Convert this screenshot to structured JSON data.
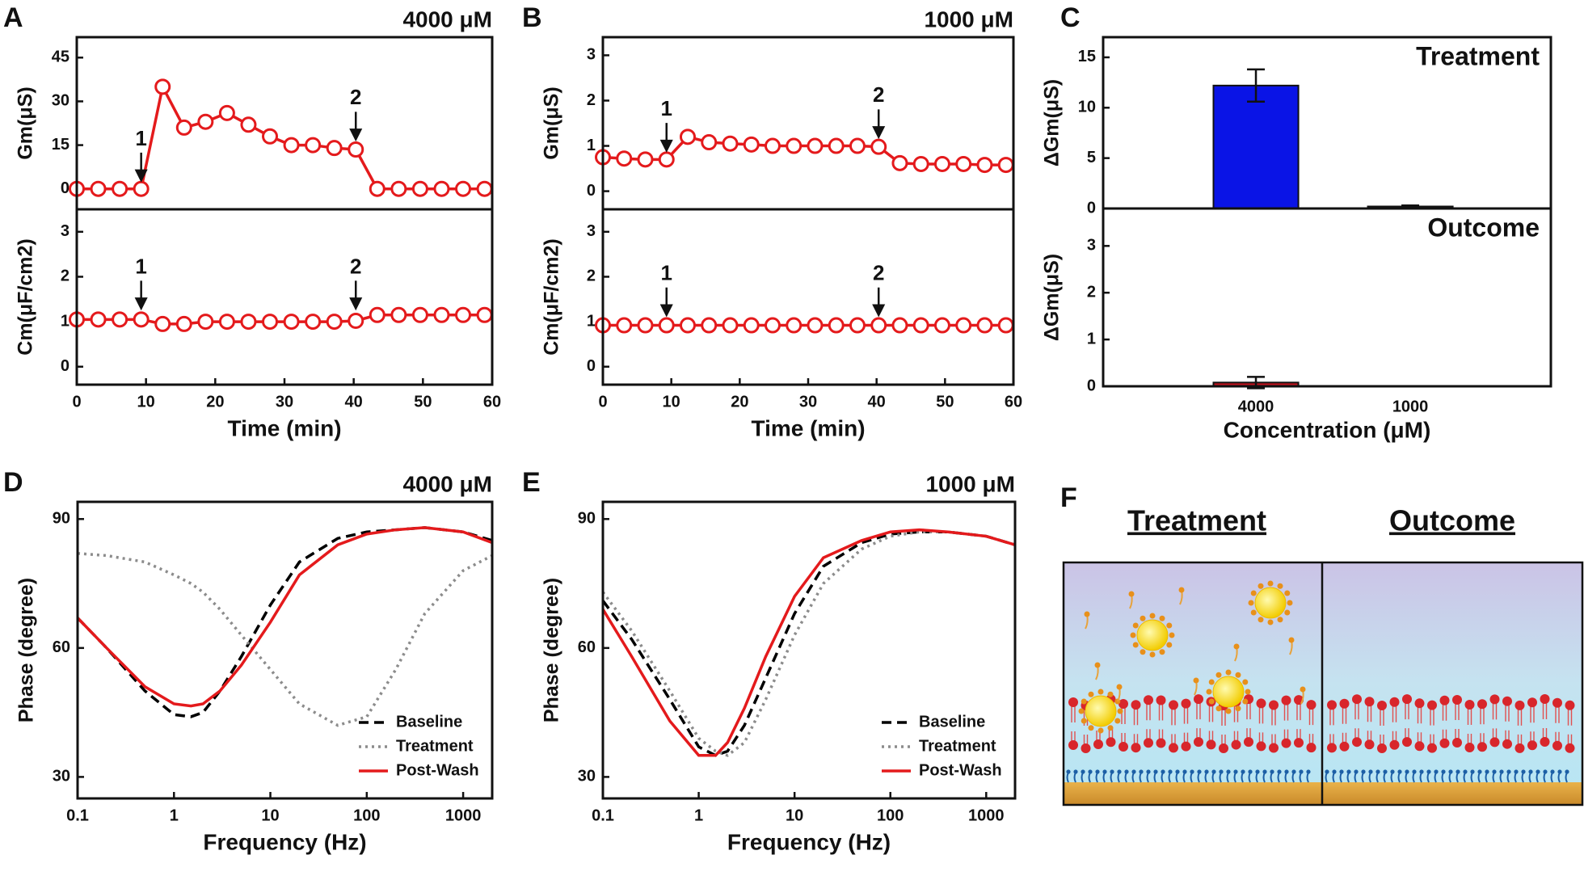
{
  "chart_data": [
    {
      "type": "line",
      "panel": "A",
      "subtitle": "4000 μM",
      "ylabel": "Gm(μS)",
      "marker": "circle-open",
      "color": "#e41a1c",
      "x": [
        0,
        3.1,
        6.2,
        9.3,
        12.4,
        15.5,
        18.6,
        21.7,
        24.8,
        27.9,
        31,
        34.1,
        37.2,
        40.3,
        43.4,
        46.5,
        49.6,
        52.7,
        55.8,
        58.9
      ],
      "values": [
        0,
        0,
        0,
        0,
        35,
        21,
        23,
        26,
        22,
        18,
        15,
        15,
        14,
        13.5,
        0,
        0,
        0,
        0,
        0,
        0
      ],
      "xlim": [
        0,
        60
      ],
      "ylim": [
        -7,
        52
      ],
      "yticks": [
        0,
        15,
        30,
        45
      ],
      "annotations": [
        {
          "label": "1",
          "x": 9.3,
          "y": 3
        },
        {
          "label": "2",
          "x": 40.3,
          "y": 17
        }
      ]
    },
    {
      "type": "line",
      "ylabel": "Cm(μF/cm2)",
      "xlabel": "Time (min)",
      "marker": "circle-open",
      "color": "#e41a1c",
      "x": [
        0,
        3.1,
        6.2,
        9.3,
        12.4,
        15.5,
        18.6,
        21.7,
        24.8,
        27.9,
        31,
        34.1,
        37.2,
        40.3,
        43.4,
        46.5,
        49.6,
        52.7,
        55.8,
        58.9
      ],
      "values": [
        1.05,
        1.05,
        1.05,
        1.05,
        0.95,
        0.95,
        1,
        1,
        1,
        1,
        1,
        1,
        1,
        1.02,
        1.15,
        1.15,
        1.15,
        1.15,
        1.15,
        1.15
      ],
      "xlim": [
        0,
        60
      ],
      "xticks": [
        0,
        10,
        20,
        30,
        40,
        50,
        60
      ],
      "ylim": [
        -0.4,
        3.5
      ],
      "yticks": [
        0,
        1,
        2,
        3
      ],
      "annotations": [
        {
          "label": "1",
          "x": 9.3,
          "y": 1.3
        },
        {
          "label": "2",
          "x": 40.3,
          "y": 1.3
        }
      ]
    },
    {
      "type": "line",
      "panel": "B",
      "subtitle": "1000 μM",
      "ylabel": "Gm(μS)",
      "marker": "circle-open",
      "color": "#e41a1c",
      "x": [
        0,
        3.1,
        6.2,
        9.3,
        12.4,
        15.5,
        18.6,
        21.7,
        24.8,
        27.9,
        31,
        34.1,
        37.2,
        40.3,
        43.4,
        46.5,
        49.6,
        52.7,
        55.8,
        58.9
      ],
      "values": [
        0.75,
        0.72,
        0.7,
        0.7,
        1.2,
        1.08,
        1.05,
        1.03,
        1,
        1,
        1,
        1,
        1,
        0.98,
        0.62,
        0.6,
        0.6,
        0.6,
        0.58,
        0.58
      ],
      "xlim": [
        0,
        60
      ],
      "ylim": [
        -0.4,
        3.4
      ],
      "yticks": [
        0,
        1,
        2,
        3
      ],
      "annotations": [
        {
          "label": "1",
          "x": 9.3,
          "y": 0.9
        },
        {
          "label": "2",
          "x": 40.3,
          "y": 1.2
        }
      ]
    },
    {
      "type": "line",
      "ylabel": "Cm(μF/cm2)",
      "xlabel": "Time (min)",
      "marker": "circle-open",
      "color": "#e41a1c",
      "x": [
        0,
        3.1,
        6.2,
        9.3,
        12.4,
        15.5,
        18.6,
        21.7,
        24.8,
        27.9,
        31,
        34.1,
        37.2,
        40.3,
        43.4,
        46.5,
        49.6,
        52.7,
        55.8,
        58.9
      ],
      "values": [
        0.92,
        0.92,
        0.92,
        0.92,
        0.92,
        0.92,
        0.92,
        0.92,
        0.92,
        0.92,
        0.92,
        0.92,
        0.92,
        0.92,
        0.92,
        0.92,
        0.92,
        0.92,
        0.92,
        0.92
      ],
      "xlim": [
        0,
        60
      ],
      "xticks": [
        0,
        10,
        20,
        30,
        40,
        50,
        60
      ],
      "ylim": [
        -0.4,
        3.5
      ],
      "yticks": [
        0,
        1,
        2,
        3
      ],
      "annotations": [
        {
          "label": "1",
          "x": 9.3,
          "y": 1.15
        },
        {
          "label": "2",
          "x": 40.3,
          "y": 1.15
        }
      ]
    },
    {
      "type": "bar",
      "panel": "C",
      "ylabel": "ΔGm(μS)",
      "note": "Treatment",
      "color": "#0a14e6",
      "values": [
        12.2,
        0.2
      ],
      "errors": [
        1.6,
        0.1
      ],
      "ylim": [
        0,
        17
      ],
      "yticks": [
        0,
        5,
        10,
        15
      ]
    },
    {
      "type": "bar",
      "ylabel": "ΔGm(μS)",
      "note": "Outcome",
      "xlabel": "Concentration (μM)",
      "color": "#c0141e",
      "categories": [
        "4000",
        "1000"
      ],
      "values": [
        0.08,
        0
      ],
      "errors": [
        0.12,
        0
      ],
      "ylim": [
        0,
        3.8
      ],
      "yticks": [
        0,
        1,
        2,
        3
      ]
    },
    {
      "type": "line",
      "panel": "D",
      "subtitle": "4000 μM",
      "xlabel": "Frequency (Hz)",
      "ylabel": "Phase (degree)",
      "xlog": true,
      "legend": "lower right",
      "x": [
        0.1,
        0.2,
        0.5,
        1,
        1.5,
        2,
        3,
        5,
        10,
        20,
        50,
        100,
        200,
        400,
        1000,
        2000
      ],
      "xlim": [
        0.1,
        2000
      ],
      "xticks": [
        0.1,
        1,
        10,
        100,
        1000
      ],
      "ylim": [
        25,
        94
      ],
      "yticks": [
        30,
        60,
        90
      ],
      "series": [
        {
          "name": "Baseline",
          "color": "#000000",
          "dash": "dashed",
          "values": [
            67,
            60,
            50,
            44.5,
            44,
            45,
            50,
            58,
            70,
            80,
            85.5,
            87,
            87.5,
            88,
            87,
            85
          ]
        },
        {
          "name": "Treatment",
          "color": "#8c8c8c",
          "dash": "dotted",
          "values": [
            82,
            81.5,
            80,
            77,
            75,
            73,
            69,
            63,
            55,
            47,
            42,
            44,
            55,
            68,
            78,
            81.5
          ]
        },
        {
          "name": "Post-Wash",
          "color": "#e41a1c",
          "dash": "solid",
          "values": [
            67,
            60,
            51,
            47,
            46.5,
            47,
            50,
            56,
            66,
            77,
            84,
            86.5,
            87.5,
            88,
            87,
            84.5
          ]
        }
      ]
    },
    {
      "type": "line",
      "panel": "E",
      "subtitle": "1000 μM",
      "xlabel": "Frequency (Hz)",
      "ylabel": "Phase (degree)",
      "xlog": true,
      "legend": "lower right",
      "x": [
        0.1,
        0.2,
        0.5,
        1,
        1.5,
        2,
        3,
        5,
        10,
        20,
        50,
        100,
        200,
        400,
        1000,
        2000
      ],
      "xlim": [
        0.1,
        2000
      ],
      "xticks": [
        0.1,
        1,
        10,
        100,
        1000
      ],
      "ylim": [
        25,
        94
      ],
      "yticks": [
        30,
        60,
        90
      ],
      "series": [
        {
          "name": "Baseline",
          "color": "#000000",
          "dash": "dashed",
          "values": [
            71,
            62,
            48,
            37,
            35,
            36,
            42,
            53,
            68,
            79,
            84.5,
            86.5,
            87,
            87,
            86,
            84
          ]
        },
        {
          "name": "Treatment",
          "color": "#8c8c8c",
          "dash": "dotted",
          "values": [
            73,
            64,
            50,
            39,
            36,
            35,
            38,
            48,
            63,
            75,
            83,
            86,
            87,
            87,
            86,
            84
          ]
        },
        {
          "name": "Post-Wash",
          "color": "#e41a1c",
          "dash": "solid",
          "values": [
            69,
            58,
            43,
            35,
            35,
            38,
            46,
            58,
            72,
            81,
            85,
            87,
            87.5,
            87,
            86,
            84
          ]
        }
      ]
    }
  ],
  "illustration": {
    "panel": "F",
    "labels": [
      "Treatment",
      "Outcome"
    ]
  }
}
